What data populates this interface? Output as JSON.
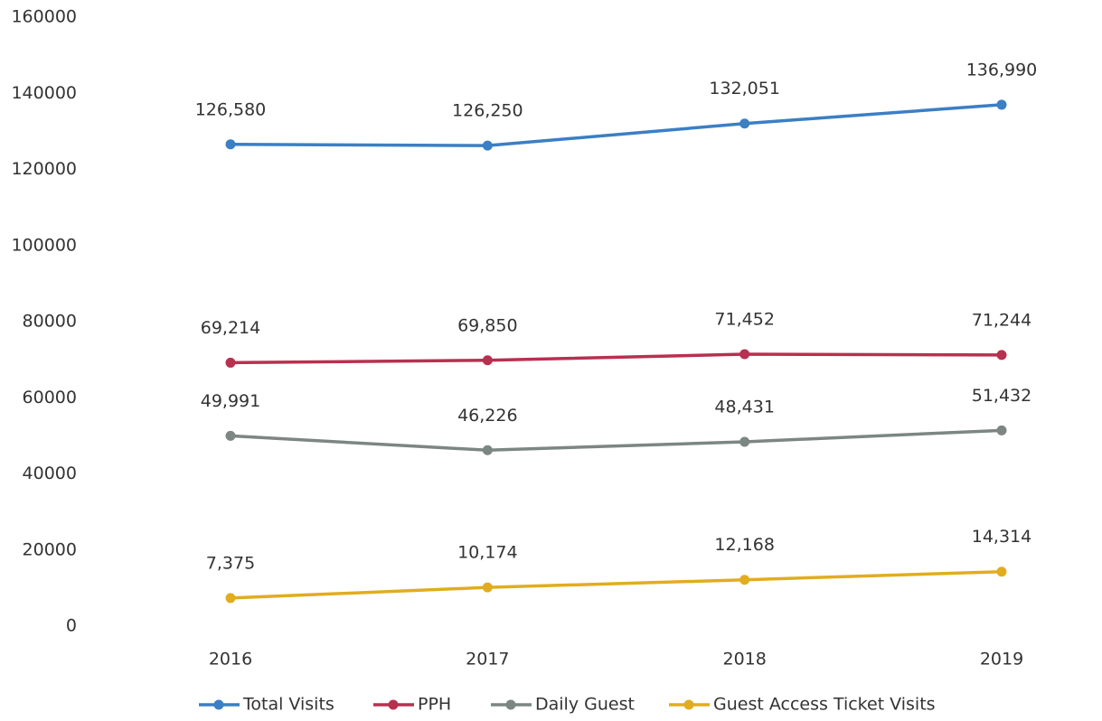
{
  "chart_data": {
    "type": "line",
    "categories": [
      "2016",
      "2017",
      "2018",
      "2019"
    ],
    "series": [
      {
        "name": "Total Visits",
        "color": "#3b7fc4",
        "values": [
          126580,
          126250,
          132051,
          136990
        ],
        "value_labels": [
          "126,580",
          "126,250",
          "132,051",
          "136,990"
        ]
      },
      {
        "name": "PPH",
        "color": "#b8304f",
        "values": [
          69214,
          69850,
          71452,
          71244
        ],
        "value_labels": [
          "69,214",
          "69,850",
          "71,452",
          "71,244"
        ]
      },
      {
        "name": "Daily Guest",
        "color": "#7c8682",
        "values": [
          49991,
          46226,
          48431,
          51432
        ],
        "value_labels": [
          "49,991",
          "46,226",
          "48,431",
          "51,432"
        ]
      },
      {
        "name": "Guest Access Ticket Visits",
        "color": "#e1ad1f",
        "values": [
          7375,
          10174,
          12168,
          14314
        ],
        "value_labels": [
          "7,375",
          "10,174",
          "12,168",
          "14,314"
        ]
      }
    ],
    "ylim": [
      0,
      160000
    ],
    "yticks": [
      0,
      20000,
      40000,
      60000,
      80000,
      100000,
      120000,
      140000,
      160000
    ],
    "grid": false,
    "legend": "bottom"
  }
}
